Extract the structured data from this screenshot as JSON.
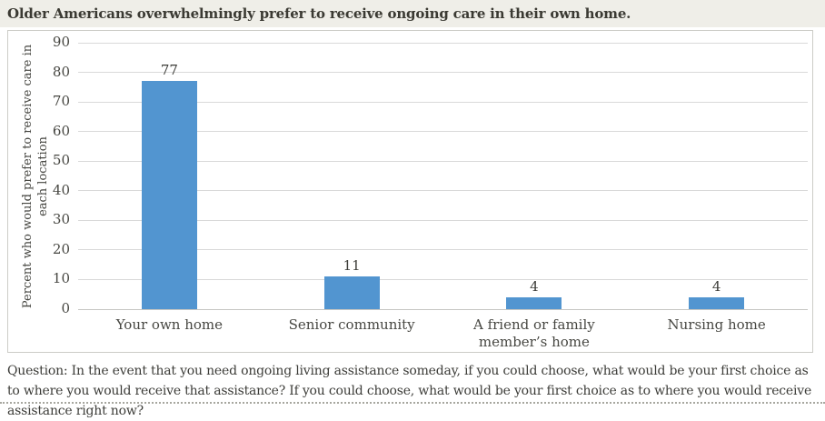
{
  "title": "Older Americans overwhelmingly prefer to receive ongoing care in their own home.",
  "question": "Question: In the event that you need ongoing living assistance someday, if you could choose, what would be your first choice as to where you would receive that assistance? If you could choose, what would be your first choice as to where you would receive assistance right now?",
  "colors": {
    "title_bar_bg": "#efeee8",
    "title_text": "#3b3a33",
    "panel_border": "#ccccc7",
    "gridline": "#d9d9d9",
    "axis_line": "#c6c6c2",
    "bar": "#5295d0",
    "label_text": "#474742",
    "question_text": "#3c3c38",
    "dotted_divider": "#a7a79f"
  },
  "chart_data": {
    "type": "bar",
    "title": "Older Americans overwhelmingly prefer to receive ongoing care in their own home.",
    "categories": [
      "Your own home",
      "Senior community",
      "A friend or family member’s home",
      "Nursing home"
    ],
    "values": [
      77,
      11,
      4,
      4
    ],
    "data_labels": [
      77,
      11,
      4,
      4
    ],
    "xlabel": "",
    "ylabel": "Percent who would prefer to receive care in each location",
    "ylim": [
      0,
      90
    ],
    "yticks": [
      0,
      10,
      20,
      30,
      40,
      50,
      60,
      70,
      80,
      90
    ],
    "grid": "horizontal",
    "legend": "none",
    "bar_color": "#5295d0"
  }
}
